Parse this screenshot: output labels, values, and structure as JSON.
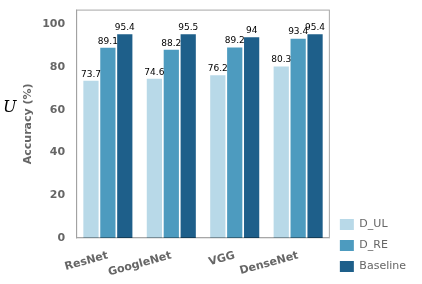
{
  "chart_data": {
    "type": "bar",
    "categories": [
      "ResNet",
      "GoogleNet",
      "VGG",
      "DenseNet"
    ],
    "series": [
      {
        "name": "D_UL",
        "color": "#b8d9e8",
        "values": [
          73.7,
          74.6,
          76.2,
          80.3
        ]
      },
      {
        "name": "D_RE",
        "color": "#4d9bbf",
        "values": [
          89.1,
          88.2,
          89.2,
          93.4
        ]
      },
      {
        "name": "Baseline",
        "color": "#1e5f8a",
        "values": [
          95.4,
          95.5,
          94,
          95.4
        ]
      }
    ],
    "ylabel": "Accuracy (%)",
    "ylim": [
      0,
      107
    ],
    "yticks": [
      0,
      20,
      40,
      60,
      80,
      100
    ],
    "grid": false,
    "legend": "lower right",
    "data_labels": true,
    "annotations": [
      "U"
    ]
  }
}
